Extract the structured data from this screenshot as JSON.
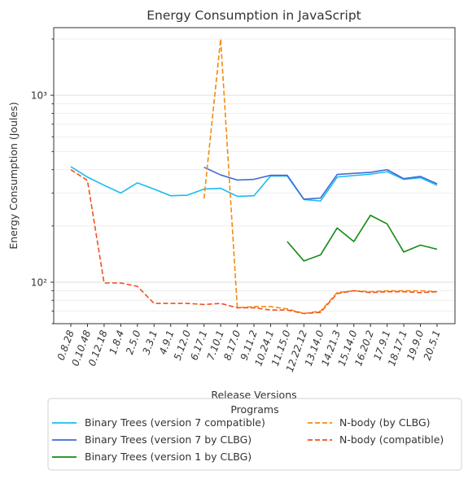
{
  "chart_data": {
    "type": "line",
    "title": "Energy Consumption in JavaScript",
    "xlabel": "Release Versions",
    "ylabel": "Energy Consumption (Joules)",
    "yscale": "log",
    "ylim": [
      60,
      2300
    ],
    "yticks": [
      {
        "value": 100,
        "label": "10²"
      },
      {
        "value": 1000,
        "label": "10³"
      }
    ],
    "grid": "horizontal",
    "categories": [
      "0.8.28",
      "0.10.48",
      "0.12.18",
      "1.8.4",
      "2.5.0",
      "3.3.1",
      "4.9.1",
      "5.12.0",
      "6.17.1",
      "7.10.1",
      "8.17.0",
      "9.11.2",
      "10.24.1",
      "11.15.0",
      "12.22.12",
      "13.14.0",
      "14.21.3",
      "15.14.0",
      "16.20.2",
      "17.9.1",
      "18.17.1",
      "19.9.0",
      "20.5.1"
    ],
    "legend": {
      "title": "Programs",
      "placement": "bottom"
    },
    "series": [
      {
        "name": "Binary Trees (version 7 compatible)",
        "color": "#1ABCF0",
        "dash": "solid",
        "values": [
          415,
          365,
          330,
          300,
          340,
          315,
          290,
          292,
          315,
          318,
          288,
          290,
          370,
          370,
          277,
          272,
          365,
          372,
          378,
          390,
          355,
          362,
          330
        ]
      },
      {
        "name": "Binary Trees (version 7 by CLBG)",
        "color": "#3F6AD8",
        "dash": "solid",
        "values": [
          null,
          null,
          null,
          null,
          null,
          null,
          null,
          null,
          412,
          375,
          352,
          355,
          373,
          373,
          278,
          282,
          377,
          382,
          387,
          400,
          358,
          368,
          336
        ]
      },
      {
        "name": "Binary Trees (version 1 by CLBG)",
        "color": "#138A13",
        "dash": "solid",
        "values": [
          null,
          null,
          null,
          null,
          null,
          null,
          null,
          null,
          null,
          null,
          null,
          null,
          null,
          165,
          130,
          140,
          195,
          165,
          228,
          205,
          145,
          158,
          150
        ]
      },
      {
        "name": "N-body (by CLBG)",
        "color": "#F58A0B",
        "dash": "dashed",
        "values": [
          null,
          null,
          null,
          null,
          null,
          null,
          null,
          null,
          280,
          2000,
          73,
          74,
          74,
          72,
          68,
          70,
          88,
          90,
          89,
          90,
          90,
          90,
          89
        ]
      },
      {
        "name": "N-body (compatible)",
        "color": "#F2501C",
        "dash": "dashed",
        "values": [
          400,
          350,
          99,
          99,
          95,
          77,
          77,
          77,
          76,
          77,
          73,
          73,
          71,
          71,
          68,
          69,
          87,
          90,
          88,
          89,
          89,
          88,
          89
        ]
      }
    ]
  }
}
